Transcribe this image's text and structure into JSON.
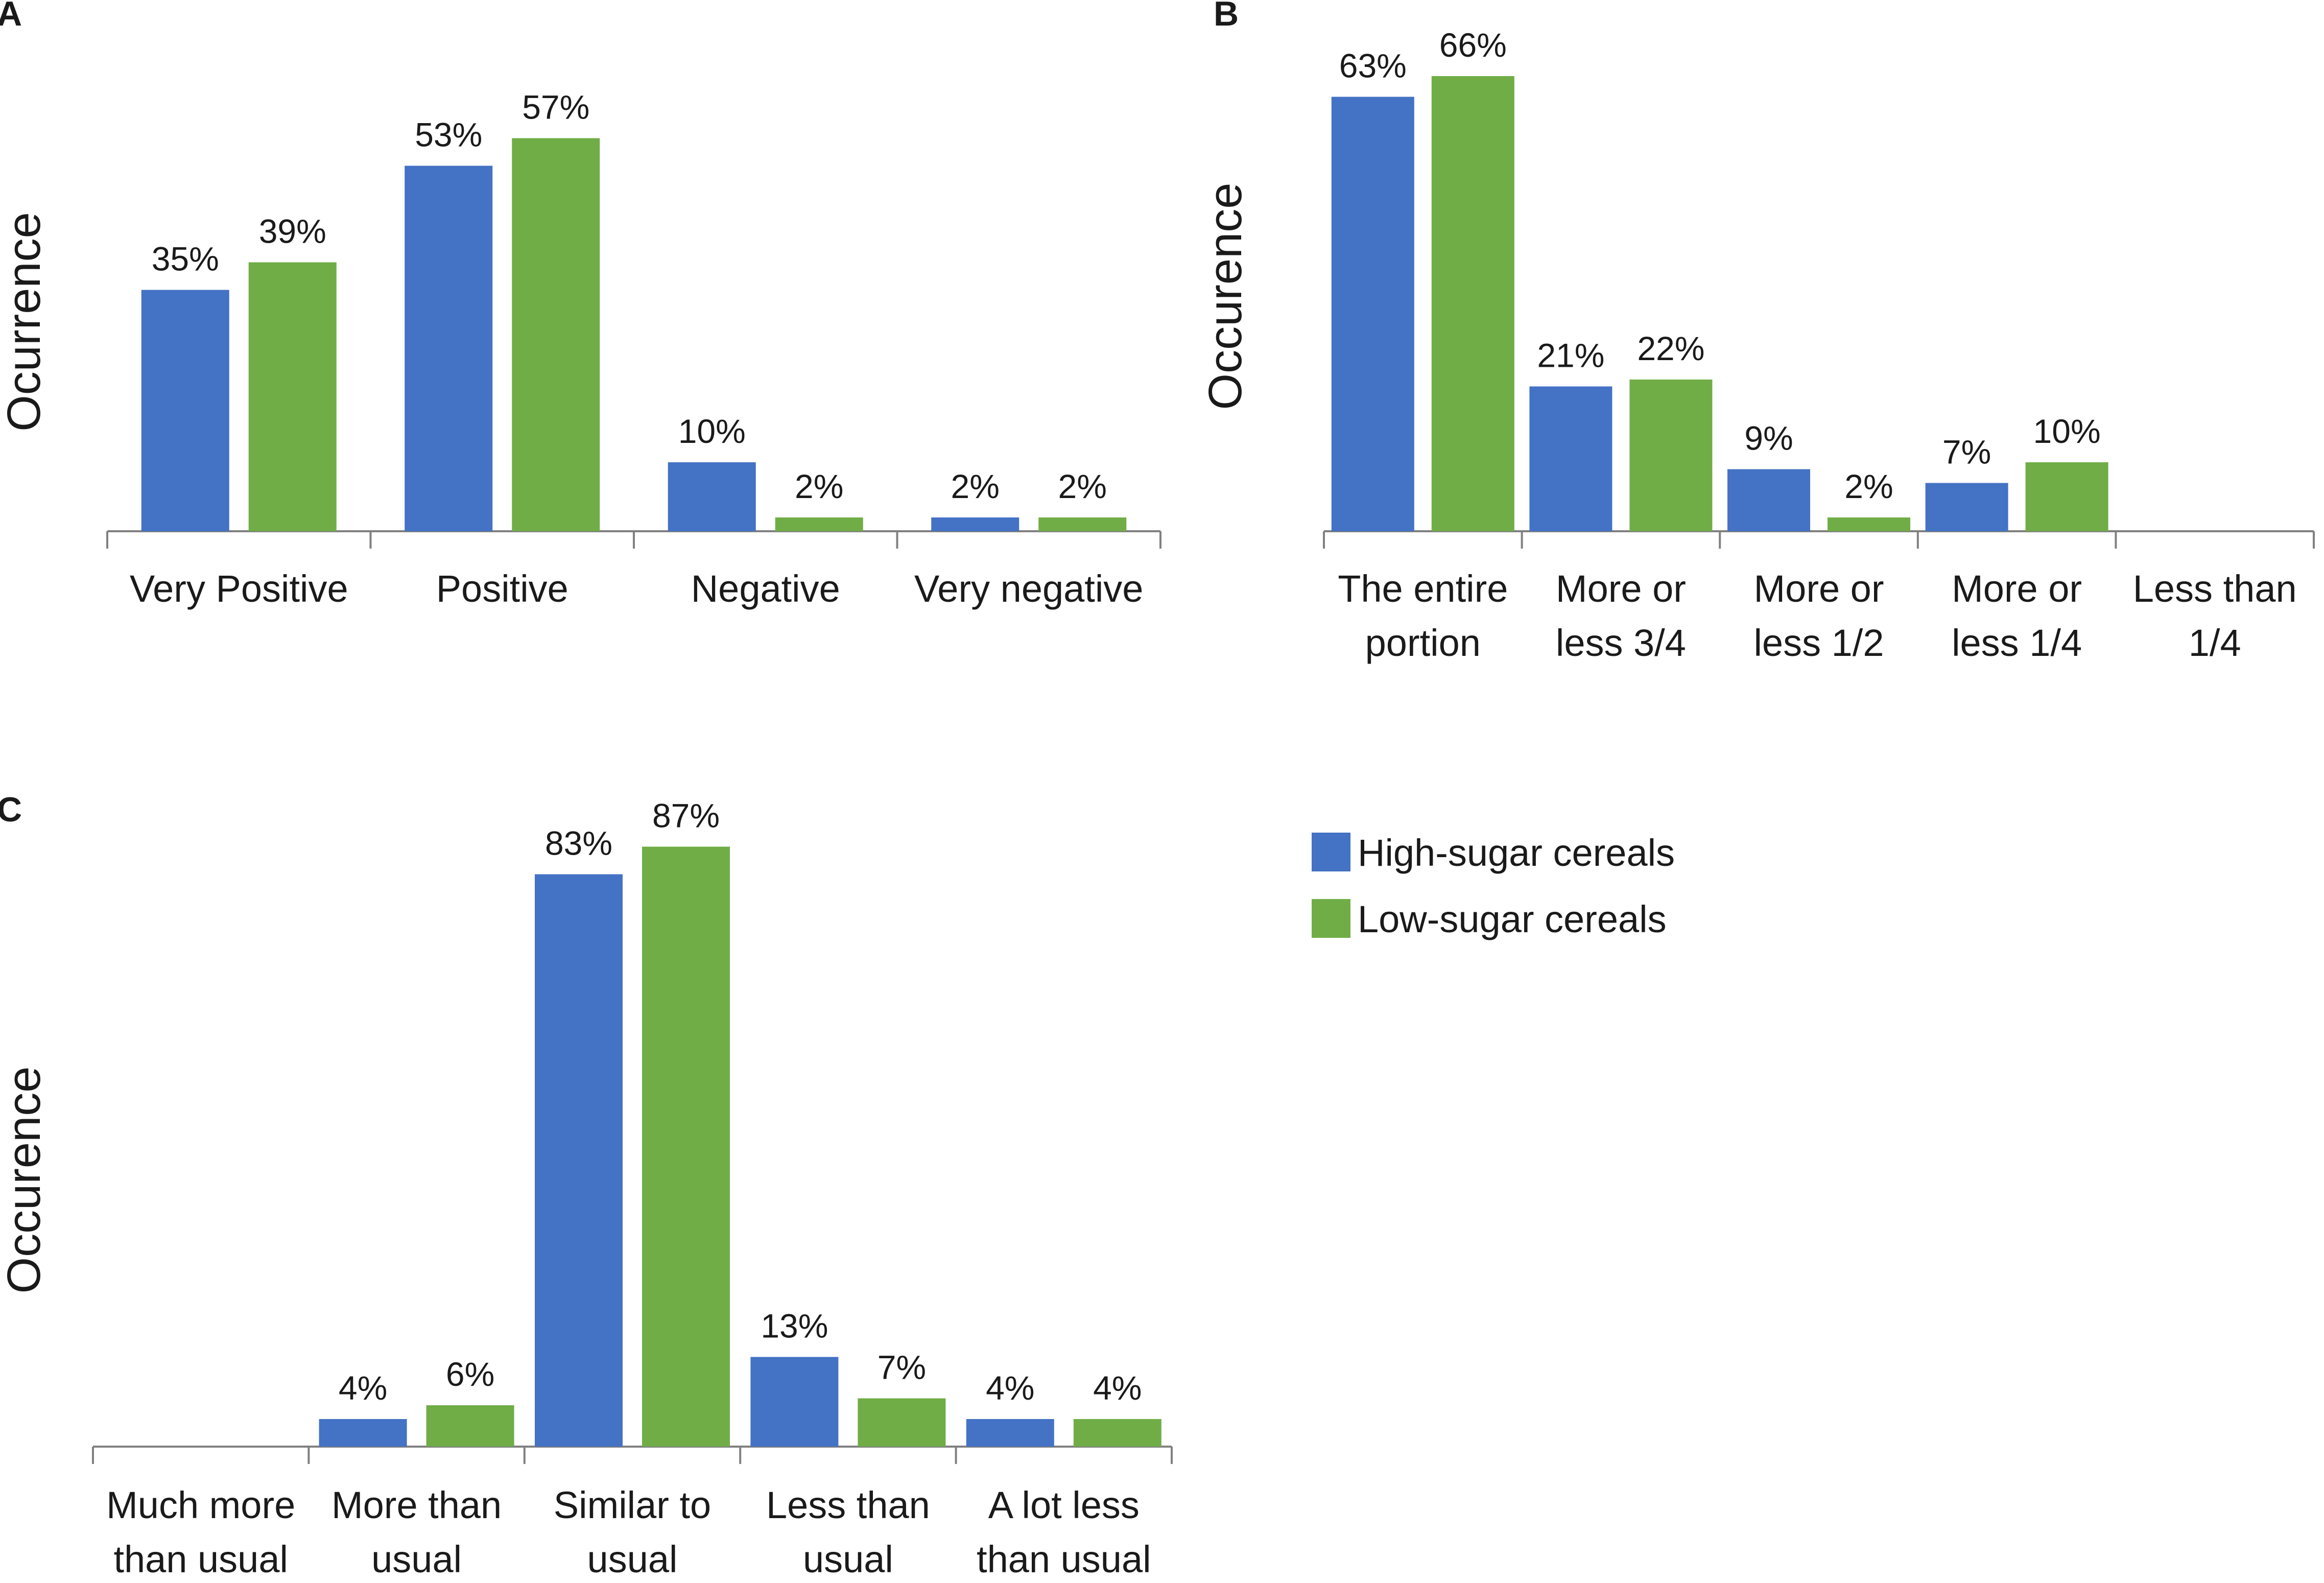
{
  "legend": [
    {
      "label": "High-sugar cereals",
      "color": "#4472C4"
    },
    {
      "label": "Low-sugar cereals",
      "color": "#70AD47"
    }
  ],
  "chart_data": [
    {
      "panel": "A",
      "type": "bar",
      "ylabel": "Ocurrence",
      "ylim": [
        0,
        100
      ],
      "categories": [
        [
          "Very Positive"
        ],
        [
          "Positive"
        ],
        [
          "Negative"
        ],
        [
          "Very negative"
        ]
      ],
      "series": [
        {
          "name": "High-sugar cereals",
          "values": [
            35,
            53,
            10,
            2
          ],
          "labels": [
            "35%",
            "53%",
            "10%",
            "2%"
          ]
        },
        {
          "name": "Low-sugar cereals",
          "values": [
            39,
            57,
            2,
            2
          ],
          "labels": [
            "39%",
            "57%",
            "2%",
            "2%"
          ]
        }
      ]
    },
    {
      "panel": "B",
      "type": "bar",
      "ylabel": "Occurence",
      "ylim": [
        0,
        100
      ],
      "categories": [
        [
          "The entire",
          "portion"
        ],
        [
          "More or",
          "less 3/4"
        ],
        [
          "More or",
          "less 1/2"
        ],
        [
          "More or",
          "less 1/4"
        ],
        [
          "Less than",
          "1/4"
        ]
      ],
      "series": [
        {
          "name": "High-sugar cereals",
          "values": [
            63,
            21,
            9,
            7,
            null
          ],
          "labels": [
            "63%",
            "21%",
            "9%",
            "7%",
            null
          ]
        },
        {
          "name": "Low-sugar cereals",
          "values": [
            66,
            22,
            2,
            10,
            null
          ],
          "labels": [
            "66%",
            "22%",
            "2%",
            "10%",
            null
          ]
        }
      ]
    },
    {
      "panel": "C",
      "type": "bar",
      "ylabel": "Occurence",
      "ylim": [
        0,
        100
      ],
      "categories": [
        [
          "Much more",
          "than usual"
        ],
        [
          "More than",
          "usual"
        ],
        [
          "Similar to",
          "usual"
        ],
        [
          "Less than",
          "usual"
        ],
        [
          "A lot less",
          "than usual"
        ]
      ],
      "series": [
        {
          "name": "High-sugar cereals",
          "values": [
            null,
            4,
            83,
            13,
            4
          ],
          "labels": [
            null,
            "4%",
            "83%",
            "13%",
            "4%"
          ]
        },
        {
          "name": "Low-sugar cereals",
          "values": [
            null,
            6,
            87,
            7,
            4
          ],
          "labels": [
            null,
            "6%",
            "87%",
            "7%",
            "4%"
          ]
        }
      ]
    }
  ]
}
